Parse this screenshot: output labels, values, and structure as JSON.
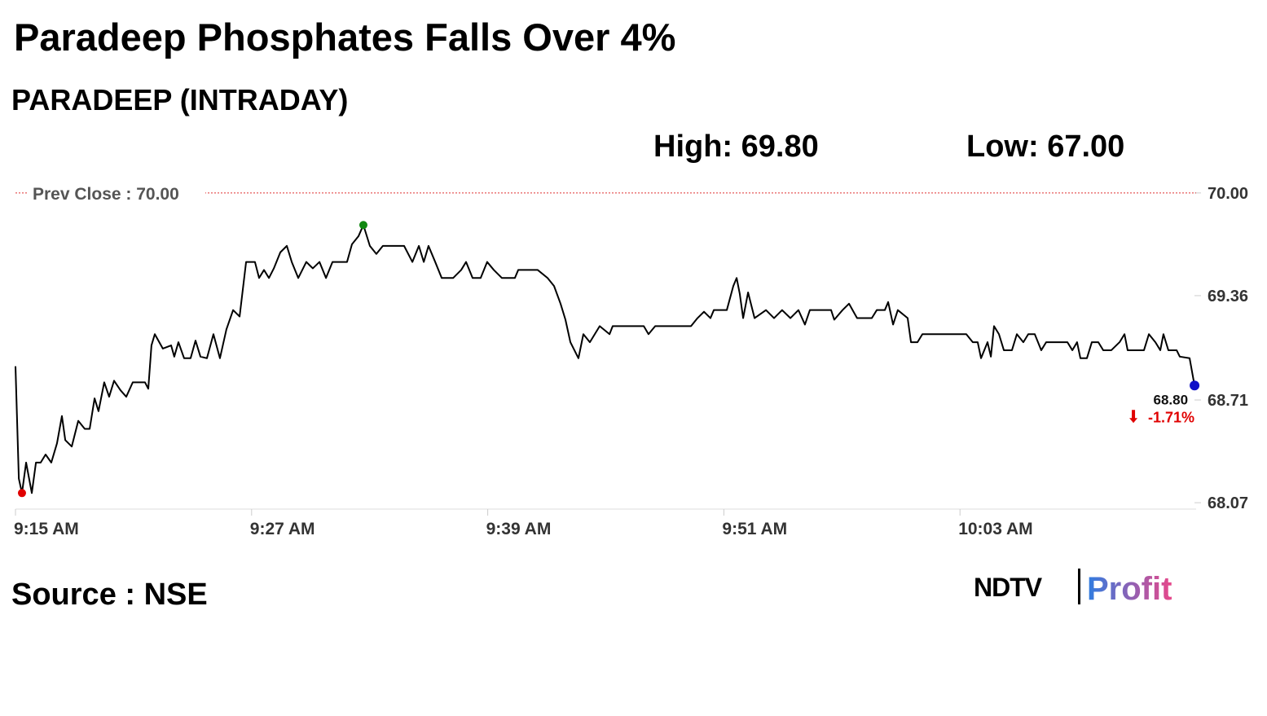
{
  "chart_data": {
    "type": "line",
    "title": "Paradeep Phosphates Falls Over 4%",
    "subtitle": "PARADEEP (INTRADAY)",
    "annotations": [
      "High: 69.80",
      "Low: 67.00"
    ],
    "reference_line": {
      "label": "Prev Close : 70.00",
      "value": 70,
      "color": "#e03030"
    },
    "last_value_label": "68.80",
    "change_label": "-1.71%",
    "change_color": "#e00000",
    "marker_colors": {
      "min": "#e00000",
      "max": "#118811",
      "last": "#1010c8"
    },
    "source": "Source : NSE",
    "brand": [
      "NDTV",
      "Profit"
    ],
    "xlim": [
      555,
      615
    ],
    "xticks": [
      {
        "value": 555,
        "label": "9:15 AM"
      },
      {
        "value": 567,
        "label": "9:27 AM"
      },
      {
        "value": 579,
        "label": "9:39 AM"
      },
      {
        "value": 591,
        "label": "9:51 AM"
      },
      {
        "value": 603,
        "label": "10:03 AM"
      }
    ],
    "ylim": [
      68.03,
      70.05
    ],
    "yticks": [
      {
        "value": 70,
        "label": "70.00"
      },
      69.36,
      68.71,
      68.07
    ],
    "grid": false,
    "series": [
      {
        "name": "PARADEEP",
        "color": "#000000",
        "x": [
          555,
          555.17,
          555.33,
          555.54,
          555.83,
          556.04,
          556.28,
          556.53,
          556.82,
          557.11,
          557.36,
          557.53,
          557.86,
          558.19,
          558.52,
          558.77,
          559.02,
          559.22,
          559.51,
          559.76,
          560.01,
          560.34,
          560.63,
          560.96,
          561.58,
          561.75,
          561.91,
          562.08,
          562.49,
          562.91,
          563.07,
          563.28,
          563.57,
          563.9,
          564.15,
          564.4,
          564.73,
          565.06,
          565.39,
          565.72,
          566.06,
          566.39,
          566.72,
          567.17,
          567.38,
          567.63,
          567.88,
          568.13,
          568.46,
          568.79,
          569.04,
          569.37,
          569.78,
          570.11,
          570.45,
          570.78,
          571.11,
          571.44,
          571.85,
          572.1,
          572.43,
          572.68,
          573.01,
          573.34,
          573.67,
          574.75,
          575.17,
          575.5,
          575.75,
          575.99,
          576.33,
          576.66,
          577.24,
          577.65,
          577.9,
          578.23,
          578.64,
          578.97,
          579.31,
          579.72,
          580.38,
          580.55,
          581.54,
          582.04,
          582.37,
          582.7,
          582.95,
          583.2,
          583.61,
          583.86,
          584.19,
          584.69,
          585.19,
          585.35,
          586.93,
          587.17,
          587.51,
          589.33,
          589.66,
          589.99,
          590.32,
          590.49,
          591.15,
          591.48,
          591.65,
          591.81,
          591.98,
          592.23,
          592.56,
          593.14,
          593.55,
          593.96,
          594.38,
          594.79,
          595.12,
          595.37,
          596.45,
          596.61,
          597.03,
          597.36,
          597.77,
          598.52,
          598.77,
          599.18,
          599.35,
          599.6,
          599.84,
          600.34,
          600.51,
          600.84,
          601.09,
          603.32,
          603.65,
          603.9,
          604.07,
          604.4,
          604.57,
          604.73,
          604.98,
          605.23,
          605.64,
          605.89,
          606.22,
          606.47,
          606.8,
          607.13,
          607.38,
          608.46,
          608.71,
          608.95,
          609.12,
          609.45,
          609.7,
          610.03,
          610.28,
          610.69,
          611.11,
          611.36,
          611.52,
          612.35,
          612.6,
          612.93,
          613.18,
          613.34,
          613.59,
          614.01,
          614.17,
          614.67,
          614.92
        ],
        "values": [
          68.92,
          68.22,
          68.13,
          68.32,
          68.13,
          68.32,
          68.32,
          68.37,
          68.32,
          68.44,
          68.61,
          68.46,
          68.42,
          68.58,
          68.53,
          68.53,
          68.72,
          68.64,
          68.82,
          68.73,
          68.83,
          68.77,
          68.73,
          68.82,
          68.82,
          68.78,
          69.05,
          69.12,
          69.03,
          69.05,
          68.98,
          69.07,
          68.97,
          68.97,
          69.08,
          68.98,
          68.97,
          69.12,
          68.97,
          69.15,
          69.27,
          69.23,
          69.57,
          69.57,
          69.47,
          69.52,
          69.47,
          69.53,
          69.63,
          69.67,
          69.57,
          69.47,
          69.57,
          69.53,
          69.57,
          69.47,
          69.57,
          69.57,
          69.57,
          69.68,
          69.73,
          69.8,
          69.67,
          69.62,
          69.67,
          69.67,
          69.57,
          69.67,
          69.57,
          69.67,
          69.57,
          69.47,
          69.47,
          69.52,
          69.57,
          69.47,
          69.47,
          69.57,
          69.52,
          69.47,
          69.47,
          69.52,
          69.52,
          69.47,
          69.42,
          69.31,
          69.21,
          69.07,
          68.97,
          69.12,
          69.07,
          69.17,
          69.12,
          69.17,
          69.17,
          69.12,
          69.17,
          69.17,
          69.22,
          69.26,
          69.22,
          69.27,
          69.27,
          69.42,
          69.47,
          69.37,
          69.22,
          69.38,
          69.22,
          69.27,
          69.22,
          69.27,
          69.22,
          69.27,
          69.18,
          69.27,
          69.27,
          69.21,
          69.27,
          69.31,
          69.22,
          69.22,
          69.27,
          69.27,
          69.32,
          69.18,
          69.27,
          69.22,
          69.07,
          69.07,
          69.12,
          69.12,
          69.07,
          69.07,
          68.97,
          69.07,
          68.98,
          69.17,
          69.12,
          69.02,
          69.02,
          69.12,
          69.07,
          69.12,
          69.12,
          69.02,
          69.07,
          69.07,
          69.02,
          69.07,
          68.97,
          68.97,
          69.07,
          69.07,
          69.02,
          69.02,
          69.07,
          69.12,
          69.02,
          69.02,
          69.12,
          69.07,
          69.02,
          69.12,
          69.02,
          69.02,
          68.98,
          68.97,
          68.8
        ]
      }
    ]
  }
}
